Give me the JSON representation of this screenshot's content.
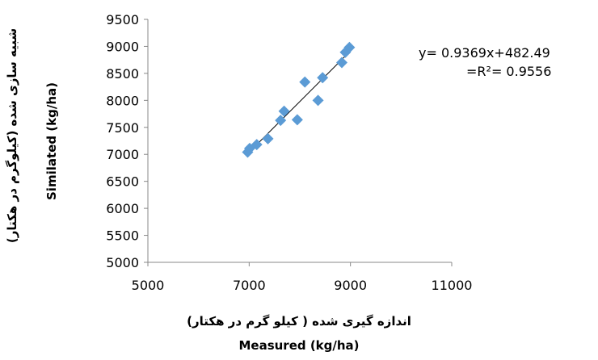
{
  "chart_data": {
    "type": "scatter",
    "title": "",
    "xlabel_fa": "اندازه گیری شده ( کیلو گرم در هکتار)",
    "xlabel": "Measured (kg/ha)",
    "ylabel_fa": "شبیه سازی شده (کیلوگرم در هکتار)",
    "ylabel": "Similated (kg/ha)",
    "xlim": [
      5000,
      11000
    ],
    "ylim": [
      5000,
      9500
    ],
    "xticks": [
      "5000",
      "7000",
      "9000",
      "11000"
    ],
    "yticks": [
      "5000",
      "5500",
      "6000",
      "6500",
      "7000",
      "7500",
      "8000",
      "8500",
      "9000",
      "9500"
    ],
    "grid": false,
    "marker_color": "#5b9bd5",
    "line_color": "#000000",
    "points": [
      {
        "x": 6970,
        "y": 7040
      },
      {
        "x": 7010,
        "y": 7110
      },
      {
        "x": 7150,
        "y": 7180
      },
      {
        "x": 7370,
        "y": 7290
      },
      {
        "x": 7620,
        "y": 7630
      },
      {
        "x": 7690,
        "y": 7800
      },
      {
        "x": 7950,
        "y": 7640
      },
      {
        "x": 8100,
        "y": 8340
      },
      {
        "x": 8360,
        "y": 8000
      },
      {
        "x": 8450,
        "y": 8420
      },
      {
        "x": 8830,
        "y": 8700
      },
      {
        "x": 8900,
        "y": 8890
      },
      {
        "x": 8980,
        "y": 8980
      }
    ],
    "trendline": {
      "slope": 0.9369,
      "intercept": 482.49,
      "x_range": [
        6970,
        8980
      ],
      "equation": "y= 0.9369x+482.49",
      "r2_label": "=R²= 0.9556"
    }
  }
}
